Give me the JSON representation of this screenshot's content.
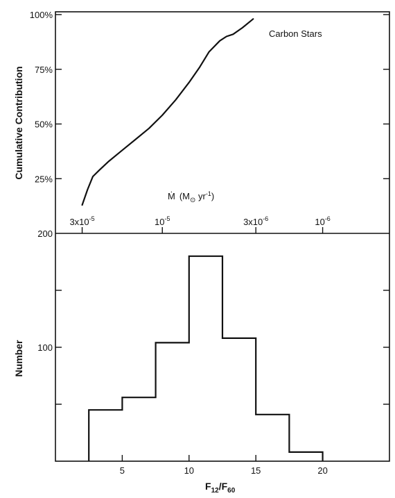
{
  "chart_data": [
    {
      "type": "line",
      "title": "",
      "annotation": "Carbon Stars",
      "ylabel": "Cumulative Contribution",
      "ylim": [
        0,
        100
      ],
      "yticks": [
        "25%",
        "50%",
        "75%",
        "100%"
      ],
      "ytick_values": [
        25,
        50,
        75,
        100
      ],
      "top_axis_label": "Ṁ (M⊙ yr⁻¹)",
      "top_axis_label_parts": {
        "m": "Ṁ",
        "unit_open": "(M",
        "sun": "⊙",
        "yr": " yr",
        "exp": "-1",
        "close": ")"
      },
      "top_axis_ticks": [
        {
          "base": "3x10",
          "exp": "-5",
          "at_f12_f60": 2.0
        },
        {
          "base": "10",
          "exp": "-5",
          "at_f12_f60": 8.0
        },
        {
          "base": "3x10",
          "exp": "-6",
          "at_f12_f60": 15.0
        },
        {
          "base": "10",
          "exp": "-6",
          "at_f12_f60": 20.0
        }
      ],
      "xlim": [
        0,
        25
      ],
      "grid": false,
      "series": [
        {
          "x": [
            2.0,
            2.4,
            2.8,
            3.3,
            4.0,
            5.0,
            6.0,
            7.0,
            8.0,
            9.0,
            10.0,
            10.8,
            11.5,
            12.3,
            12.8,
            13.3,
            14.0,
            14.8
          ],
          "y": [
            13,
            20,
            26,
            29,
            33,
            38,
            43,
            48,
            54,
            61,
            69,
            76,
            83,
            88,
            90,
            91,
            94,
            98
          ]
        }
      ]
    },
    {
      "type": "bar",
      "xlabel": "F12/F60",
      "xlabel_parts": {
        "f1": "F",
        "sub1": "12",
        "slash": "/",
        "f2": "F",
        "sub2": "60"
      },
      "ylabel": "Number",
      "xlim": [
        0,
        25
      ],
      "ylim": [
        0,
        200
      ],
      "xticks": [
        5,
        10,
        15,
        20
      ],
      "yticks": [
        100,
        200
      ],
      "bin_edges": [
        2.5,
        5,
        7.5,
        10,
        12.5,
        15,
        17.5,
        20
      ],
      "values": [
        45,
        56,
        104,
        180,
        108,
        41,
        8
      ],
      "grid": false
    }
  ]
}
